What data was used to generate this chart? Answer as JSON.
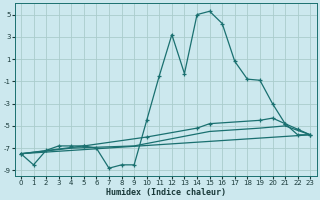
{
  "xlabel": "Humidex (Indice chaleur)",
  "bg_color": "#cce8ee",
  "grid_color": "#aacccc",
  "line_color": "#1a7070",
  "xlim": [
    -0.5,
    23.5
  ],
  "ylim": [
    -9.5,
    6.0
  ],
  "yticks": [
    -9,
    -7,
    -5,
    -3,
    -1,
    1,
    3,
    5
  ],
  "xticks": [
    0,
    1,
    2,
    3,
    4,
    5,
    6,
    7,
    8,
    9,
    10,
    11,
    12,
    13,
    14,
    15,
    16,
    17,
    18,
    19,
    20,
    21,
    22,
    23
  ],
  "line1_x": [
    0,
    1,
    2,
    3,
    4,
    5,
    6,
    7,
    8,
    9,
    10,
    11,
    12,
    13,
    14,
    15,
    16,
    17,
    18,
    19,
    20,
    21,
    22,
    23
  ],
  "line1_y": [
    -7.5,
    -8.5,
    -7.2,
    -6.8,
    -6.8,
    -6.8,
    -7.0,
    -8.8,
    -8.5,
    -8.5,
    -4.5,
    -0.5,
    3.2,
    -0.3,
    5.0,
    5.3,
    4.2,
    0.8,
    -0.8,
    -0.9,
    -3.0,
    -4.8,
    -5.8,
    -5.8
  ],
  "line2_x": [
    0,
    5,
    10,
    14,
    15,
    19,
    20,
    21,
    22,
    23
  ],
  "line2_y": [
    -7.5,
    -6.8,
    -6.0,
    -5.2,
    -4.8,
    -4.5,
    -4.3,
    -4.8,
    -5.3,
    -5.8
  ],
  "line3_x": [
    0,
    23
  ],
  "line3_y": [
    -7.5,
    -5.8
  ],
  "line4_x": [
    0,
    4,
    9,
    15,
    19,
    21,
    23
  ],
  "line4_y": [
    -7.5,
    -7.0,
    -6.8,
    -5.5,
    -5.2,
    -5.0,
    -5.8
  ],
  "xlabel_fontsize": 6.0,
  "tick_fontsize": 5.0
}
